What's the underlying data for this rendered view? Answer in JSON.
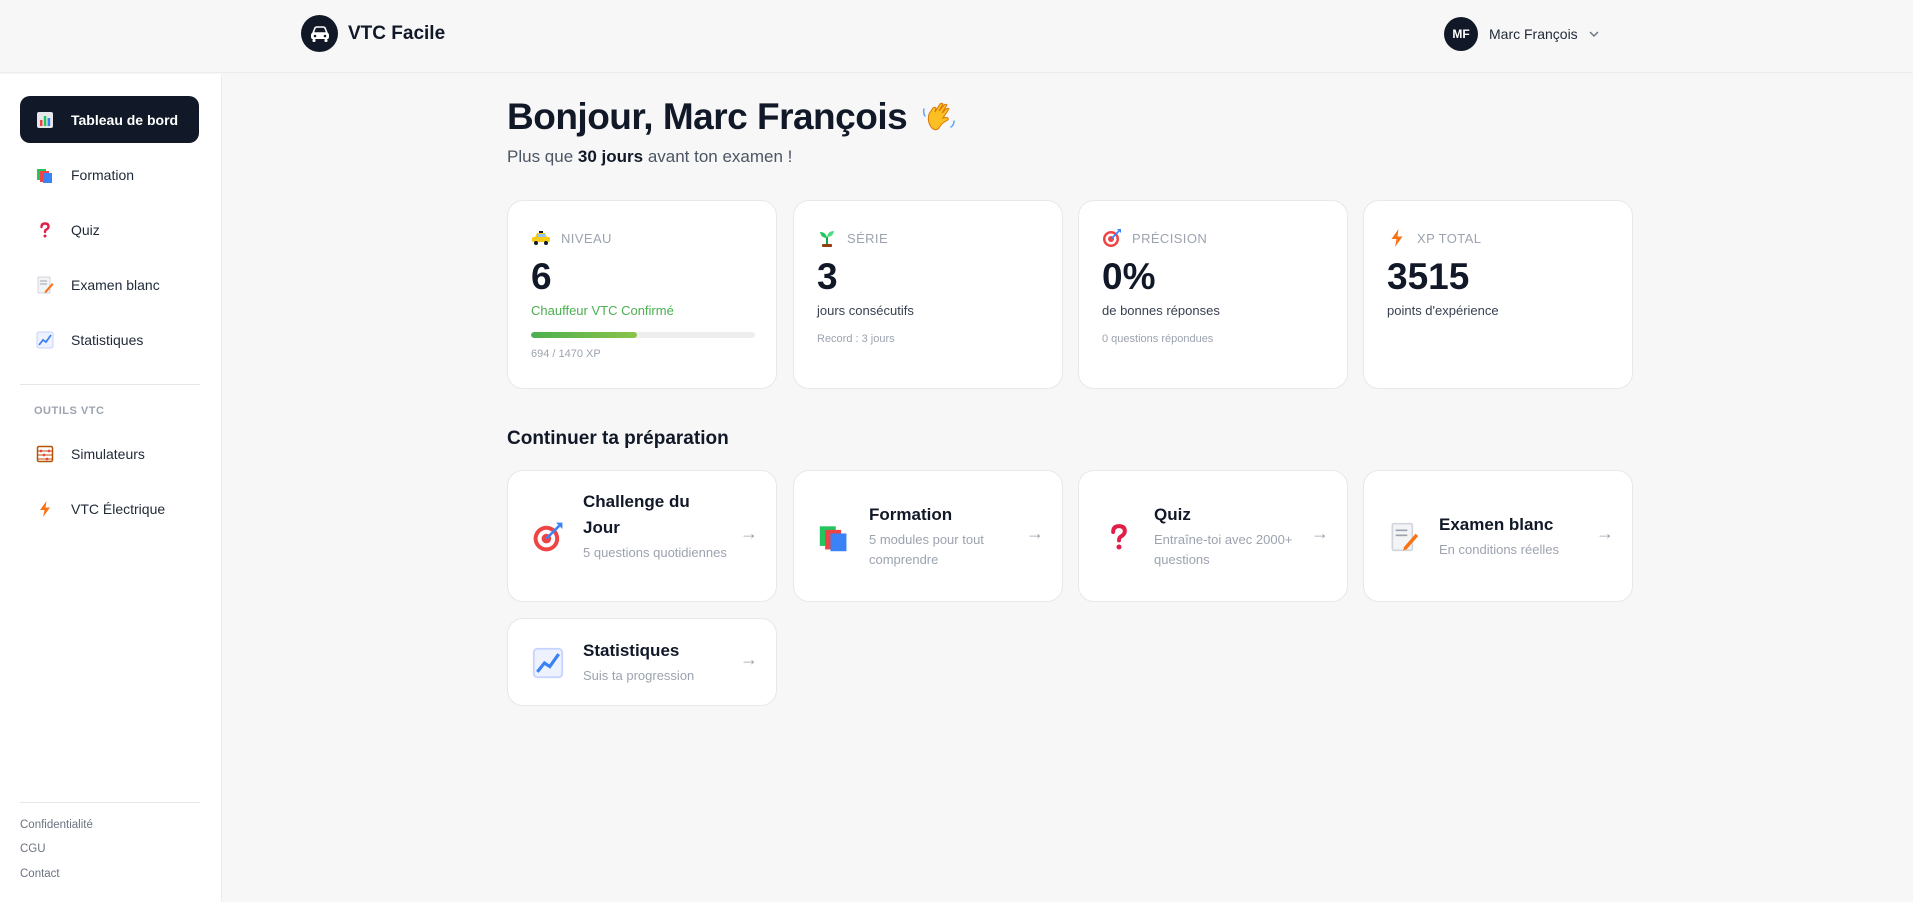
{
  "header": {
    "brand_name": "VTC Facile",
    "user_initials": "MF",
    "user_name": "Marc François"
  },
  "sidebar": {
    "items": [
      {
        "label": "Tableau de bord",
        "icon": "bar-chart-icon"
      },
      {
        "label": "Formation",
        "icon": "books-icon"
      },
      {
        "label": "Quiz",
        "icon": "question-mark-icon"
      },
      {
        "label": "Examen blanc",
        "icon": "memo-icon"
      },
      {
        "label": "Statistiques",
        "icon": "chart-increasing-icon"
      }
    ],
    "section_label": "OUTILS VTC",
    "tools": [
      {
        "label": "Simulateurs",
        "icon": "abacus-icon"
      },
      {
        "label": "VTC Électrique",
        "icon": "lightning-icon"
      }
    ],
    "footer": [
      "Confidentialité",
      "CGU",
      "Contact"
    ]
  },
  "main": {
    "greeting": "Bonjour, Marc François",
    "subtitle_pre": "Plus que ",
    "subtitle_bold": "30 jours",
    "subtitle_post": " avant ton examen !",
    "stats": [
      {
        "label": "NIVEAU",
        "value": "6",
        "desc": "Chauffeur VTC Confirmé",
        "progress_fraction": 0.472,
        "note": "694 / 1470 XP",
        "icon": "taxi-icon"
      },
      {
        "label": "SÉRIE",
        "value": "3",
        "desc": "jours consécutifs",
        "note": "Record : 3 jours",
        "icon": "seedling-icon"
      },
      {
        "label": "PRÉCISION",
        "value": "0%",
        "desc": "de bonnes réponses",
        "note": "0 questions répondues",
        "icon": "target-icon"
      },
      {
        "label": "XP TOTAL",
        "value": "3515",
        "desc": "points d'expérience",
        "icon": "lightning-icon"
      }
    ],
    "section_title": "Continuer ta préparation",
    "actions": [
      {
        "title": "Challenge du Jour",
        "sub": "5 questions quotidiennes",
        "icon": "target-icon"
      },
      {
        "title": "Formation",
        "sub": "5 modules pour tout comprendre",
        "icon": "books-icon"
      },
      {
        "title": "Quiz",
        "sub": "Entraîne-toi avec 2000+ questions",
        "icon": "question-mark-icon"
      },
      {
        "title": "Examen blanc",
        "sub": "En conditions réelles",
        "icon": "memo-icon"
      },
      {
        "title": "Statistiques",
        "sub": "Suis ta progression",
        "icon": "chart-increasing-icon"
      }
    ],
    "arrow": "→"
  },
  "colors": {
    "dark": "#111827",
    "accent_green": "#4caf50",
    "muted": "#9ca3af",
    "background": "#f7f7f7"
  }
}
